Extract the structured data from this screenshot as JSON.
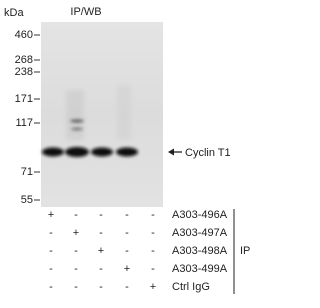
{
  "header": {
    "title": "IP/WB",
    "unit": "kDa"
  },
  "markers": [
    460,
    268,
    238,
    171,
    117,
    71,
    55
  ],
  "band_label": "Cyclin T1",
  "ip_table": {
    "rows": [
      {
        "label": "A303-496A",
        "marks": [
          "+",
          "-",
          "-",
          "-",
          "-"
        ]
      },
      {
        "label": "A303-497A",
        "marks": [
          "-",
          "+",
          "-",
          "-",
          "-"
        ]
      },
      {
        "label": "A303-498A",
        "marks": [
          "-",
          "-",
          "+",
          "-",
          "-"
        ]
      },
      {
        "label": "A303-499A",
        "marks": [
          "-",
          "-",
          "-",
          "+",
          "-"
        ]
      },
      {
        "label": "Ctrl IgG",
        "marks": [
          "-",
          "-",
          "-",
          "-",
          "+"
        ]
      }
    ],
    "group_label": "IP"
  }
}
